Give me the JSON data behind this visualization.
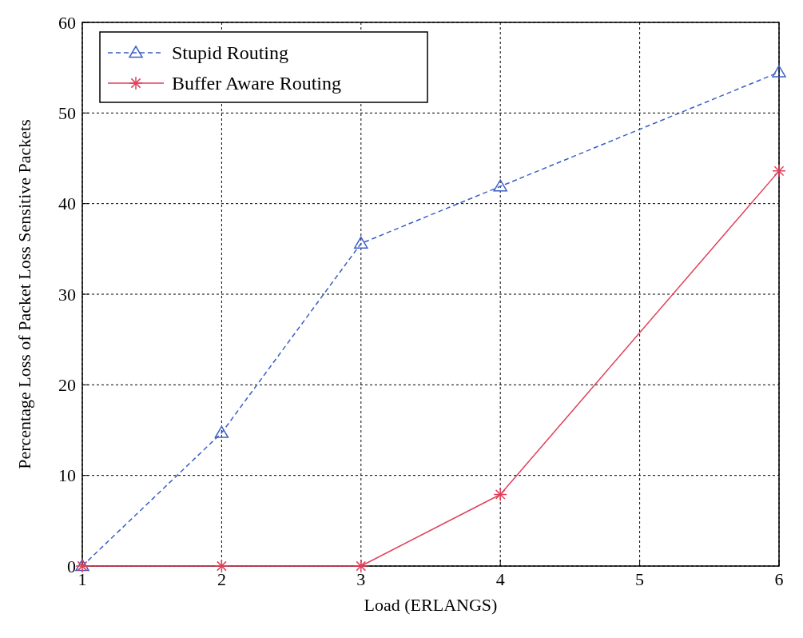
{
  "chart_data": {
    "type": "line",
    "xlabel": "Load (ERLANGS)",
    "ylabel": "Percentage Loss of Packet Loss Sensitive Packets",
    "xlim": [
      1,
      6
    ],
    "xticks": [
      1,
      2,
      3,
      4,
      5,
      6
    ],
    "ylim": [
      0,
      60
    ],
    "yticks": [
      0,
      10,
      20,
      30,
      40,
      50,
      60
    ],
    "grid": true,
    "legend": "top left",
    "series": [
      {
        "name": "Stupid Routing",
        "color": "#3b5fc4",
        "x": [
          1,
          2,
          3,
          4,
          6
        ],
        "values": [
          0,
          14.7,
          35.6,
          41.9,
          54.5
        ],
        "marker": "triangle",
        "line_style": "dashed"
      },
      {
        "name": "Buffer Aware Routing",
        "color": "#e0405a",
        "x": [
          1,
          2,
          3,
          4,
          6
        ],
        "values": [
          0,
          0,
          0,
          7.9,
          43.6
        ],
        "marker": "cross",
        "line_style": "solid"
      }
    ]
  }
}
